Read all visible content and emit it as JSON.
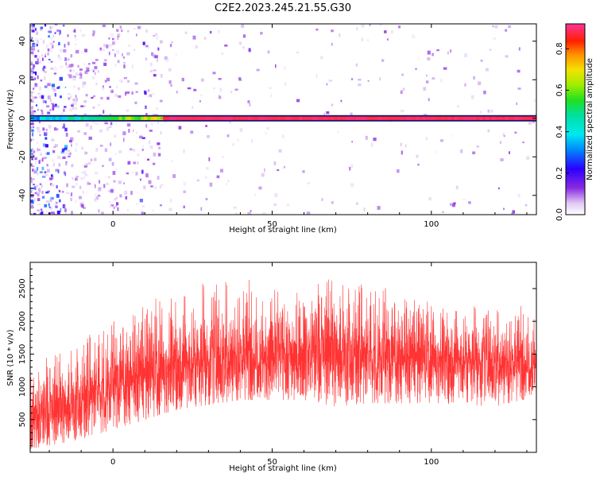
{
  "title": "C2E2.2023.245.21.55.G30",
  "chart_data": [
    {
      "type": "heatmap",
      "xlabel": "Height of straight line (km)",
      "ylabel": "Frequency (Hz)",
      "xlim": [
        -26,
        133
      ],
      "ylim": [
        -50,
        49
      ],
      "xticks": [
        "0",
        "50",
        "100"
      ],
      "yticks": [
        "-40",
        "-20",
        "0",
        "20",
        "40"
      ],
      "colorbar": {
        "label": "Normalized spectral amplitude",
        "range": [
          0,
          0.92
        ],
        "ticks": [
          "0.0",
          "0.2",
          "0.4",
          "0.6",
          "0.8"
        ],
        "colormap": "gist_ncar_r-like (white -> violet -> blue -> cyan -> green -> yellow -> orange -> red -> magenta)"
      },
      "features": {
        "dominant_line_frequency_hz": 0,
        "line_start_km": -26,
        "line_end_km": 133,
        "line_amplitude_low_km": 0.35,
        "line_amplitude_high_km": 0.88,
        "background_noise_amplitude": 0.05
      },
      "grid": false
    },
    {
      "type": "line",
      "xlabel": "Height of straight line (km)",
      "ylabel": "SNR (10 * v/v)",
      "xlim": [
        -26,
        133
      ],
      "ylim": [
        0,
        2900
      ],
      "xticks": [
        "0",
        "50",
        "100"
      ],
      "yticks": [
        "500",
        "1000",
        "1500",
        "2000",
        "2500"
      ],
      "series": [
        {
          "color": "#ff0000",
          "envelope": {
            "x": [
              -26,
              -10,
              0,
              10,
              20,
              40,
              60,
              70,
              80,
              100,
              120,
              133
            ],
            "center": [
              500,
              800,
              1050,
              1200,
              1350,
              1500,
              1500,
              1550,
              1450,
              1450,
              1400,
              1400
            ],
            "lower": [
              50,
              200,
              350,
              500,
              650,
              800,
              800,
              700,
              750,
              750,
              700,
              850
            ],
            "upper": [
              1350,
              1800,
              2000,
              2300,
              2500,
              2700,
              2500,
              2800,
              2600,
              2300,
              2200,
              2300
            ]
          }
        }
      ],
      "grid": false
    }
  ]
}
